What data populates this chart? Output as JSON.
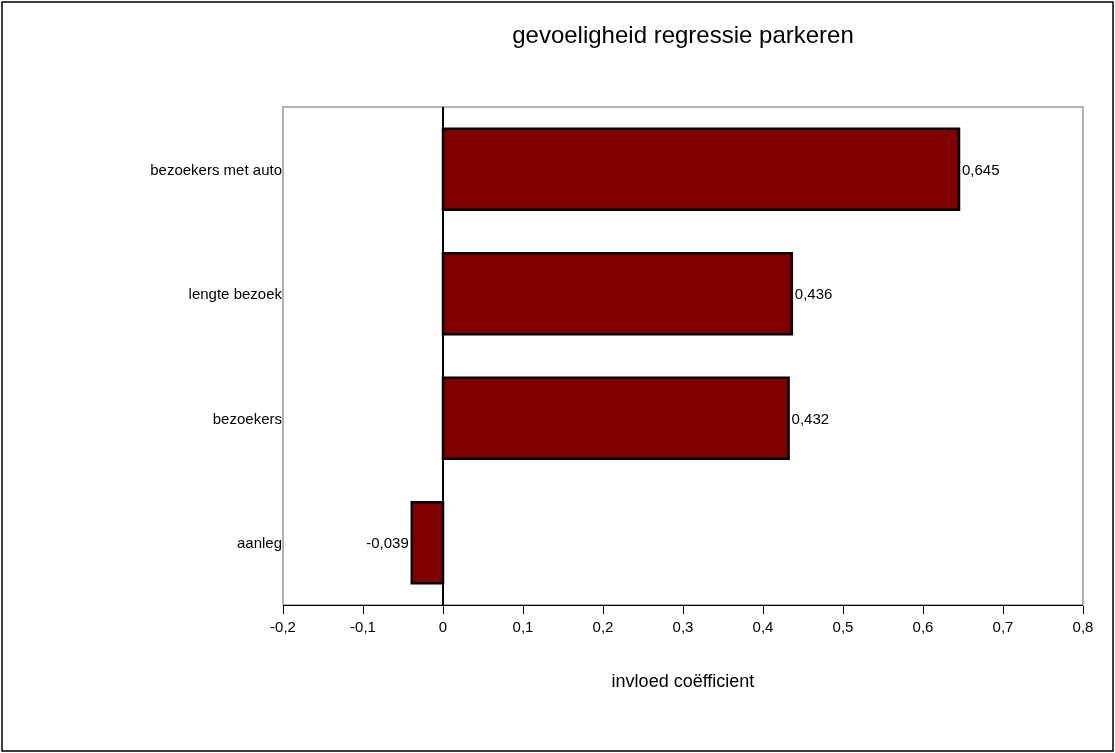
{
  "chart_data": {
    "type": "bar",
    "orientation": "horizontal",
    "title": "gevoeligheid regressie parkeren",
    "xlabel": "invloed coëfficient",
    "categories": [
      "bezoekers met auto",
      "lengte bezoek",
      "bezoekers",
      "aanleg"
    ],
    "values": [
      0.645,
      0.436,
      0.432,
      -0.039
    ],
    "value_labels": [
      "0,645",
      "0,436",
      "0,432",
      "-0,039"
    ],
    "color": "#800000",
    "xlim": [
      -0.2,
      0.8
    ],
    "xticks": [
      {
        "value": -0.2,
        "label": "-0,2"
      },
      {
        "value": -0.1,
        "label": "-0,1"
      },
      0,
      {
        "value": 0.1,
        "label": "0,1"
      },
      {
        "value": 0.2,
        "label": "0,2"
      },
      {
        "value": 0.3,
        "label": "0,3"
      },
      {
        "value": 0.4,
        "label": "0,4"
      },
      {
        "value": 0.5,
        "label": "0,5"
      },
      {
        "value": 0.6,
        "label": "0,6"
      },
      {
        "value": 0.7,
        "label": "0,7"
      },
      {
        "value": 0.8,
        "label": "0,8"
      }
    ],
    "legend": false
  }
}
